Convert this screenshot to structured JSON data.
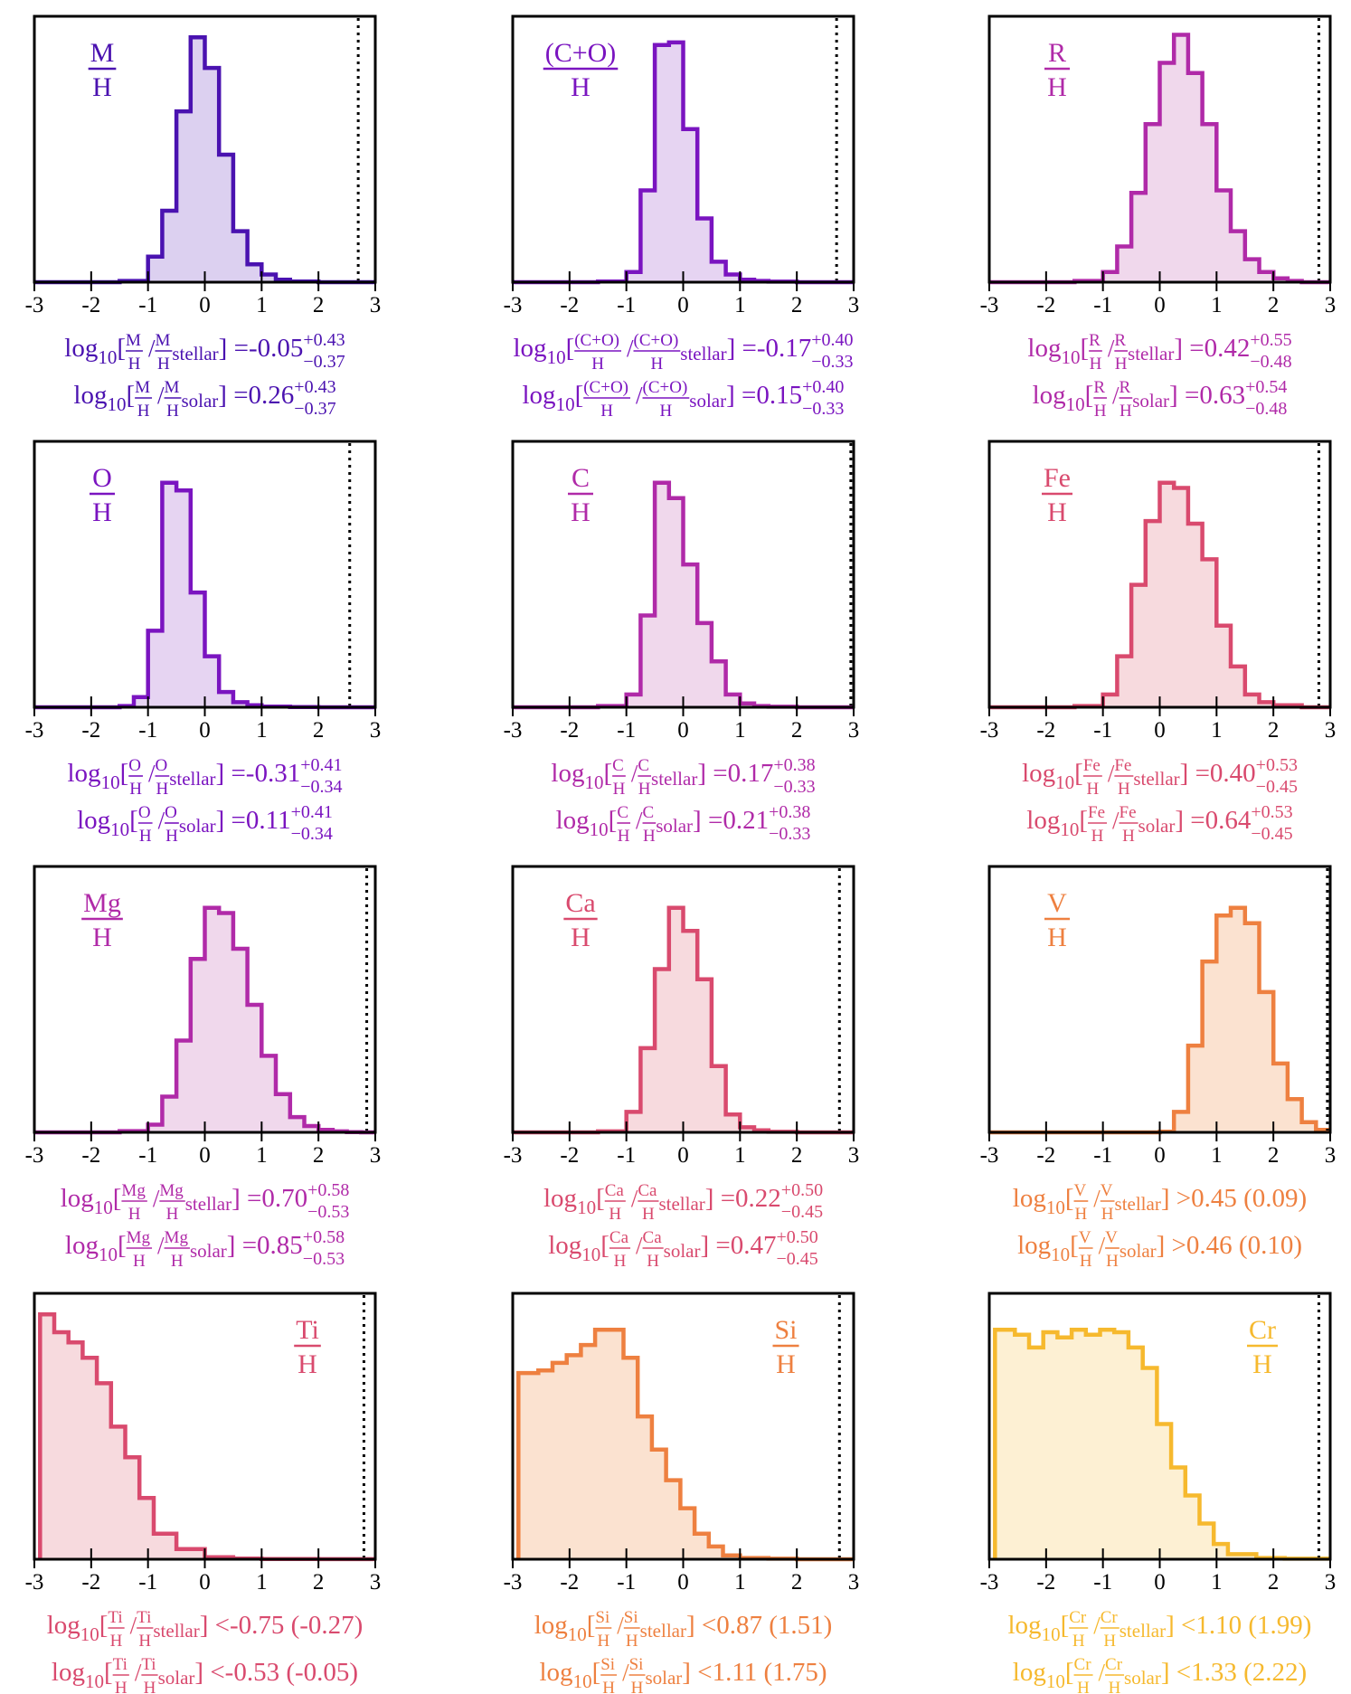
{
  "figure": {
    "x_ticks": [
      "-3",
      "-2",
      "-1",
      "0",
      "1",
      "2",
      "3"
    ],
    "log_prefix": "log",
    "log_base": "10",
    "divider": "/",
    "sup_stellar": "stellar",
    "sup_solar": "solar",
    "denominator": "H"
  },
  "chart_data": [
    {
      "type": "histogram",
      "title_num": "M",
      "color": "#4a12b0",
      "fill": "#dcd0f0",
      "xlim": [
        -3,
        3
      ],
      "ylim": [
        0,
        1
      ],
      "solar_line": 2.7,
      "label_pos": "top-left",
      "bin_edges": [
        -3.0,
        -2.5,
        -2.0,
        -1.5,
        -1.0,
        -0.75,
        -0.5,
        -0.25,
        0.0,
        0.25,
        0.5,
        0.75,
        1.0,
        1.25,
        1.5,
        2.0,
        3.0
      ],
      "counts": [
        0,
        0,
        0,
        0.005,
        0.1,
        0.28,
        0.67,
        0.96,
        0.84,
        0.5,
        0.2,
        0.07,
        0.03,
        0.01,
        0.003,
        0
      ],
      "ann_stellar": {
        "num": "M",
        "op": "=",
        "value": "-0.05",
        "sup": "+0.43",
        "sub": "−0.37"
      },
      "ann_solar": {
        "num": "M",
        "op": "=",
        "value": "0.26",
        "sup": "+0.43",
        "sub": "−0.37"
      }
    },
    {
      "type": "histogram",
      "title_num": "(C+O)",
      "color": "#7a14c0",
      "fill": "#e6d4f2",
      "xlim": [
        -3,
        3
      ],
      "ylim": [
        0,
        1
      ],
      "solar_line": 2.7,
      "label_pos": "top-left",
      "bin_edges": [
        -3.0,
        -2.5,
        -2.0,
        -1.5,
        -1.0,
        -0.75,
        -0.5,
        -0.25,
        0.0,
        0.25,
        0.5,
        0.75,
        1.0,
        1.25,
        1.5,
        2.0,
        3.0
      ],
      "counts": [
        0,
        0,
        0,
        0.003,
        0.04,
        0.36,
        0.93,
        0.94,
        0.6,
        0.25,
        0.08,
        0.03,
        0.01,
        0.005,
        0.002,
        0
      ],
      "ann_stellar": {
        "num": "(C+O)",
        "op": "=",
        "value": "-0.17",
        "sup": "+0.40",
        "sub": "−0.33"
      },
      "ann_solar": {
        "num": "(C+O)",
        "op": "=",
        "value": "0.15",
        "sup": "+0.40",
        "sub": "−0.33"
      }
    },
    {
      "type": "histogram",
      "title_num": "R",
      "color": "#b02aa8",
      "fill": "#f0d8ec",
      "xlim": [
        -3,
        3
      ],
      "ylim": [
        0,
        1
      ],
      "solar_line": 2.8,
      "label_pos": "top-left",
      "bin_edges": [
        -3.0,
        -2.0,
        -1.5,
        -1.0,
        -0.75,
        -0.5,
        -0.25,
        0.0,
        0.25,
        0.5,
        0.75,
        1.0,
        1.25,
        1.5,
        1.75,
        2.0,
        2.25,
        2.5,
        3.0
      ],
      "counts": [
        0,
        0,
        0.005,
        0.04,
        0.14,
        0.35,
        0.62,
        0.86,
        0.97,
        0.82,
        0.62,
        0.36,
        0.2,
        0.09,
        0.04,
        0.015,
        0.005,
        0
      ],
      "ann_stellar": {
        "num": "R",
        "op": "=",
        "value": "0.42",
        "sup": "+0.55",
        "sub": "−0.48"
      },
      "ann_solar": {
        "num": "R",
        "op": "=",
        "value": "0.63",
        "sup": "+0.54",
        "sub": "−0.48"
      }
    },
    {
      "type": "histogram",
      "title_num": "O",
      "color": "#7a14c0",
      "fill": "#e6d4f2",
      "xlim": [
        -3,
        3
      ],
      "ylim": [
        0,
        1
      ],
      "solar_line": 2.55,
      "label_pos": "top-left",
      "bin_edges": [
        -3.0,
        -2.5,
        -2.0,
        -1.5,
        -1.25,
        -1.0,
        -0.75,
        -0.5,
        -0.25,
        0.0,
        0.25,
        0.5,
        0.75,
        1.0,
        1.5,
        2.0,
        3.0
      ],
      "counts": [
        0,
        0,
        0,
        0.005,
        0.04,
        0.3,
        0.88,
        0.85,
        0.45,
        0.2,
        0.06,
        0.02,
        0.008,
        0.003,
        0.001,
        0
      ],
      "ann_stellar": {
        "num": "O",
        "op": "=",
        "value": "-0.31",
        "sup": "+0.41",
        "sub": "−0.34"
      },
      "ann_solar": {
        "num": "O",
        "op": "=",
        "value": "0.11",
        "sup": "+0.41",
        "sub": "−0.34"
      }
    },
    {
      "type": "histogram",
      "title_num": "C",
      "color": "#b02aa8",
      "fill": "#f0d8ec",
      "xlim": [
        -3,
        3
      ],
      "ylim": [
        0,
        1
      ],
      "solar_line": 2.95,
      "label_pos": "top-left",
      "bin_edges": [
        -3.0,
        -2.0,
        -1.5,
        -1.0,
        -0.75,
        -0.5,
        -0.25,
        0.0,
        0.25,
        0.5,
        0.75,
        1.0,
        1.25,
        1.5,
        2.0,
        3.0
      ],
      "counts": [
        0,
        0,
        0.005,
        0.05,
        0.36,
        0.88,
        0.82,
        0.56,
        0.33,
        0.18,
        0.05,
        0.015,
        0.005,
        0.002,
        0
      ],
      "ann_stellar": {
        "num": "C",
        "op": "=",
        "value": "0.17",
        "sup": "+0.38",
        "sub": "−0.33"
      },
      "ann_solar": {
        "num": "C",
        "op": "=",
        "value": "0.21",
        "sup": "+0.38",
        "sub": "−0.33"
      }
    },
    {
      "type": "histogram",
      "title_num": "Fe",
      "color": "#d94a6e",
      "fill": "#f7dade",
      "xlim": [
        -3,
        3
      ],
      "ylim": [
        0,
        1
      ],
      "solar_line": 2.8,
      "label_pos": "top-left",
      "bin_edges": [
        -3.0,
        -2.0,
        -1.5,
        -1.0,
        -0.75,
        -0.5,
        -0.25,
        0.0,
        0.25,
        0.5,
        0.75,
        1.0,
        1.25,
        1.5,
        1.75,
        2.0,
        2.5,
        3.0
      ],
      "counts": [
        0,
        0,
        0.005,
        0.05,
        0.2,
        0.48,
        0.73,
        0.88,
        0.86,
        0.72,
        0.58,
        0.32,
        0.16,
        0.05,
        0.02,
        0.008,
        0
      ],
      "ann_stellar": {
        "num": "Fe",
        "op": "=",
        "value": "0.40",
        "sup": "+0.53",
        "sub": "−0.45"
      },
      "ann_solar": {
        "num": "Fe",
        "op": "=",
        "value": "0.64",
        "sup": "+0.53",
        "sub": "−0.45"
      }
    },
    {
      "type": "histogram",
      "title_num": "Mg",
      "color": "#b02aa8",
      "fill": "#f0d8ec",
      "xlim": [
        -3,
        3
      ],
      "ylim": [
        0,
        1
      ],
      "solar_line": 2.85,
      "label_pos": "top-left",
      "bin_edges": [
        -3.0,
        -2.0,
        -1.5,
        -1.0,
        -0.75,
        -0.5,
        -0.25,
        0.0,
        0.25,
        0.5,
        0.75,
        1.0,
        1.25,
        1.5,
        1.75,
        2.0,
        2.25,
        2.5,
        2.75,
        3.0
      ],
      "counts": [
        0,
        0,
        0.005,
        0.03,
        0.14,
        0.36,
        0.68,
        0.88,
        0.86,
        0.72,
        0.5,
        0.3,
        0.15,
        0.06,
        0.025,
        0.01,
        0.004,
        0.001,
        0
      ],
      "ann_stellar": {
        "num": "Mg",
        "op": "=",
        "value": "0.70",
        "sup": "+0.58",
        "sub": "−0.53"
      },
      "ann_solar": {
        "num": "Mg",
        "op": "=",
        "value": "0.85",
        "sup": "+0.58",
        "sub": "−0.53"
      }
    },
    {
      "type": "histogram",
      "title_num": "Ca",
      "color": "#d94a6e",
      "fill": "#f7dade",
      "xlim": [
        -3,
        3
      ],
      "ylim": [
        0,
        1
      ],
      "solar_line": 2.75,
      "label_pos": "top-left",
      "bin_edges": [
        -3.0,
        -2.0,
        -1.5,
        -1.0,
        -0.75,
        -0.5,
        -0.25,
        0.0,
        0.25,
        0.5,
        0.75,
        1.0,
        1.25,
        1.5,
        2.0,
        3.0
      ],
      "counts": [
        0,
        0,
        0.004,
        0.08,
        0.33,
        0.64,
        0.88,
        0.79,
        0.6,
        0.26,
        0.07,
        0.02,
        0.008,
        0.002,
        0
      ],
      "ann_stellar": {
        "num": "Ca",
        "op": "=",
        "value": "0.22",
        "sup": "+0.50",
        "sub": "−0.45"
      },
      "ann_solar": {
        "num": "Ca",
        "op": "=",
        "value": "0.47",
        "sup": "+0.50",
        "sub": "−0.45"
      }
    },
    {
      "type": "histogram",
      "title_num": "V",
      "color": "#ee8040",
      "fill": "#fbe2d0",
      "xlim": [
        -3,
        3
      ],
      "ylim": [
        0,
        1
      ],
      "solar_line": 2.95,
      "label_pos": "top-left",
      "bin_edges": [
        -3.0,
        -2.0,
        -1.0,
        0.0,
        0.25,
        0.5,
        0.75,
        1.0,
        1.25,
        1.5,
        1.75,
        2.0,
        2.25,
        2.5,
        2.75,
        3.0
      ],
      "counts": [
        0,
        0,
        0,
        0.003,
        0.08,
        0.34,
        0.67,
        0.85,
        0.88,
        0.82,
        0.55,
        0.27,
        0.13,
        0.04,
        0.01
      ],
      "ann_stellar": {
        "num": "V",
        "op": ">",
        "value": "0.45 (0.09)",
        "sup": "",
        "sub": ""
      },
      "ann_solar": {
        "num": "V",
        "op": ">",
        "value": "0.46 (0.10)",
        "sup": "",
        "sub": ""
      }
    },
    {
      "type": "histogram",
      "title_num": "Ti",
      "color": "#d94a6e",
      "fill": "#f7dade",
      "xlim": [
        -3,
        3
      ],
      "ylim": [
        0,
        1
      ],
      "solar_line": 2.8,
      "label_pos": "top-right",
      "bin_edges": [
        -2.9,
        -2.65,
        -2.4,
        -2.15,
        -1.9,
        -1.65,
        -1.4,
        -1.15,
        -0.9,
        -0.5,
        0.0,
        0.5,
        1.0,
        2.0,
        3.0
      ],
      "counts": [
        0.96,
        0.89,
        0.85,
        0.79,
        0.69,
        0.52,
        0.4,
        0.24,
        0.1,
        0.04,
        0.008,
        0.003,
        0.001,
        0.0005
      ],
      "ann_stellar": {
        "num": "Ti",
        "op": "<",
        "value": "-0.75 (-0.27)",
        "sup": "",
        "sub": ""
      },
      "ann_solar": {
        "num": "Ti",
        "op": "<",
        "value": "-0.53 (-0.05)",
        "sup": "",
        "sub": ""
      }
    },
    {
      "type": "histogram",
      "title_num": "Si",
      "color": "#ee8040",
      "fill": "#fbe2d0",
      "xlim": [
        -3,
        3
      ],
      "ylim": [
        0,
        1
      ],
      "solar_line": 2.75,
      "label_pos": "top-right",
      "bin_edges": [
        -2.9,
        -2.55,
        -2.3,
        -2.05,
        -1.8,
        -1.55,
        -1.05,
        -0.8,
        -0.55,
        -0.3,
        -0.05,
        0.2,
        0.45,
        0.7,
        1.0,
        1.5,
        2.0,
        3.0
      ],
      "counts": [
        0.73,
        0.74,
        0.77,
        0.8,
        0.84,
        0.9,
        0.79,
        0.56,
        0.43,
        0.31,
        0.2,
        0.1,
        0.05,
        0.015,
        0.005,
        0.002,
        0
      ],
      "ann_stellar": {
        "num": "Si",
        "op": "<",
        "value": "0.87 (1.51)",
        "sup": "",
        "sub": ""
      },
      "ann_solar": {
        "num": "Si",
        "op": "<",
        "value": "1.11 (1.75)",
        "sup": "",
        "sub": ""
      }
    },
    {
      "type": "histogram",
      "title_num": "Cr",
      "color": "#f6b92e",
      "fill": "#fdf0d3",
      "xlim": [
        -3,
        3
      ],
      "ylim": [
        0,
        1
      ],
      "solar_line": 2.8,
      "label_pos": "top-right",
      "bin_edges": [
        -2.9,
        -2.55,
        -2.3,
        -2.05,
        -1.8,
        -1.55,
        -1.3,
        -1.05,
        -0.8,
        -0.55,
        -0.3,
        -0.05,
        0.2,
        0.45,
        0.7,
        0.95,
        1.2,
        1.7,
        2.2,
        3.0
      ],
      "counts": [
        0.9,
        0.88,
        0.83,
        0.89,
        0.87,
        0.9,
        0.88,
        0.9,
        0.89,
        0.83,
        0.75,
        0.53,
        0.36,
        0.25,
        0.14,
        0.06,
        0.02,
        0.005,
        0.002
      ],
      "ann_stellar": {
        "num": "Cr",
        "op": "<",
        "value": "1.10 (1.99)",
        "sup": "",
        "sub": ""
      },
      "ann_solar": {
        "num": "Cr",
        "op": "<",
        "value": "1.33 (2.22)",
        "sup": "",
        "sub": ""
      }
    }
  ]
}
